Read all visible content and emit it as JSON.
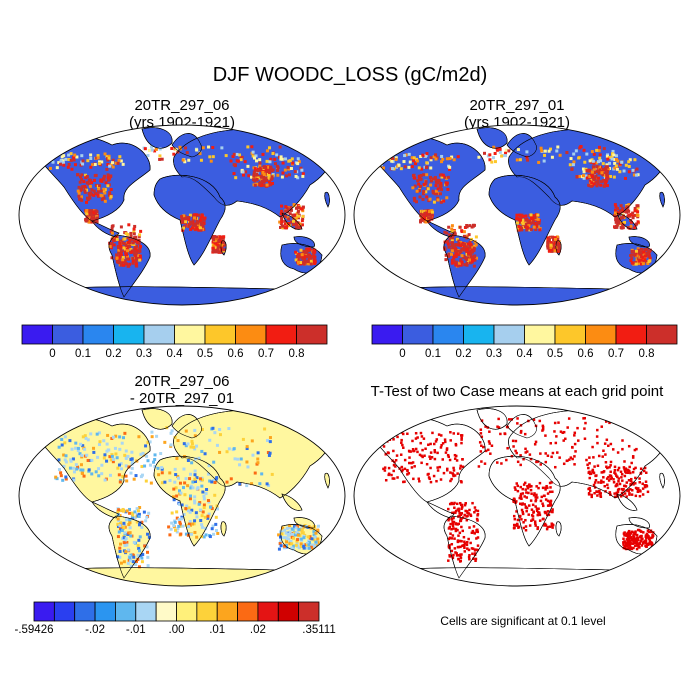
{
  "chart_data": {
    "type": "heatmap",
    "title": "DJF WOODC_LOSS (gC/m2d)",
    "panels": [
      {
        "id": "case1",
        "title_lines": [
          "20TR_297_06",
          "(yrs 1902-1921)"
        ],
        "colorbar": {
          "colors": [
            "#3a1bf0",
            "#3b5de0",
            "#2a86ef",
            "#18b4ef",
            "#a6cfee",
            "#fff79f",
            "#fdc72a",
            "#fc8c12",
            "#f21d12",
            "#cc2f2a"
          ],
          "tick_labels": [
            "0",
            "0.1",
            "0.2",
            "0.3",
            "0.4",
            "0.5",
            "0.6",
            "0.7",
            "0.8"
          ]
        }
      },
      {
        "id": "case2",
        "title_lines": [
          "20TR_297_01",
          "(yrs 1902-1921)"
        ],
        "colorbar": {
          "colors": [
            "#3a1bf0",
            "#3b5de0",
            "#2a86ef",
            "#18b4ef",
            "#a6cfee",
            "#fff79f",
            "#fdc72a",
            "#fc8c12",
            "#f21d12",
            "#cc2f2a"
          ],
          "tick_labels": [
            "0",
            "0.1",
            "0.2",
            "0.3",
            "0.4",
            "0.5",
            "0.6",
            "0.7",
            "0.8"
          ]
        }
      },
      {
        "id": "diff",
        "title_lines": [
          "20TR_297_06",
          "- 20TR_297_01"
        ],
        "colorbar": {
          "colors": [
            "#3a1bf0",
            "#2a3ff0",
            "#2f6fe8",
            "#2b95f0",
            "#5fb7ee",
            "#a9d6f4",
            "#fffac8",
            "#fff07a",
            "#fdd23a",
            "#fca51e",
            "#fb6a14",
            "#e41414",
            "#d00000",
            "#cc2f2a"
          ],
          "tick_labels": [
            "-.59426",
            "-.02",
            "-.01",
            ".00",
            ".01",
            ".02",
            ".35111"
          ]
        }
      },
      {
        "id": "ttest",
        "title_lines": [
          "T-Test of two Case means at each grid point"
        ],
        "note": "Cells are significant at 0.1 level"
      }
    ]
  },
  "colors": {
    "ocean": "#ffffff",
    "land_low": "#3b5de0",
    "diff_base": "#fff79f",
    "significant": "#e60000"
  }
}
